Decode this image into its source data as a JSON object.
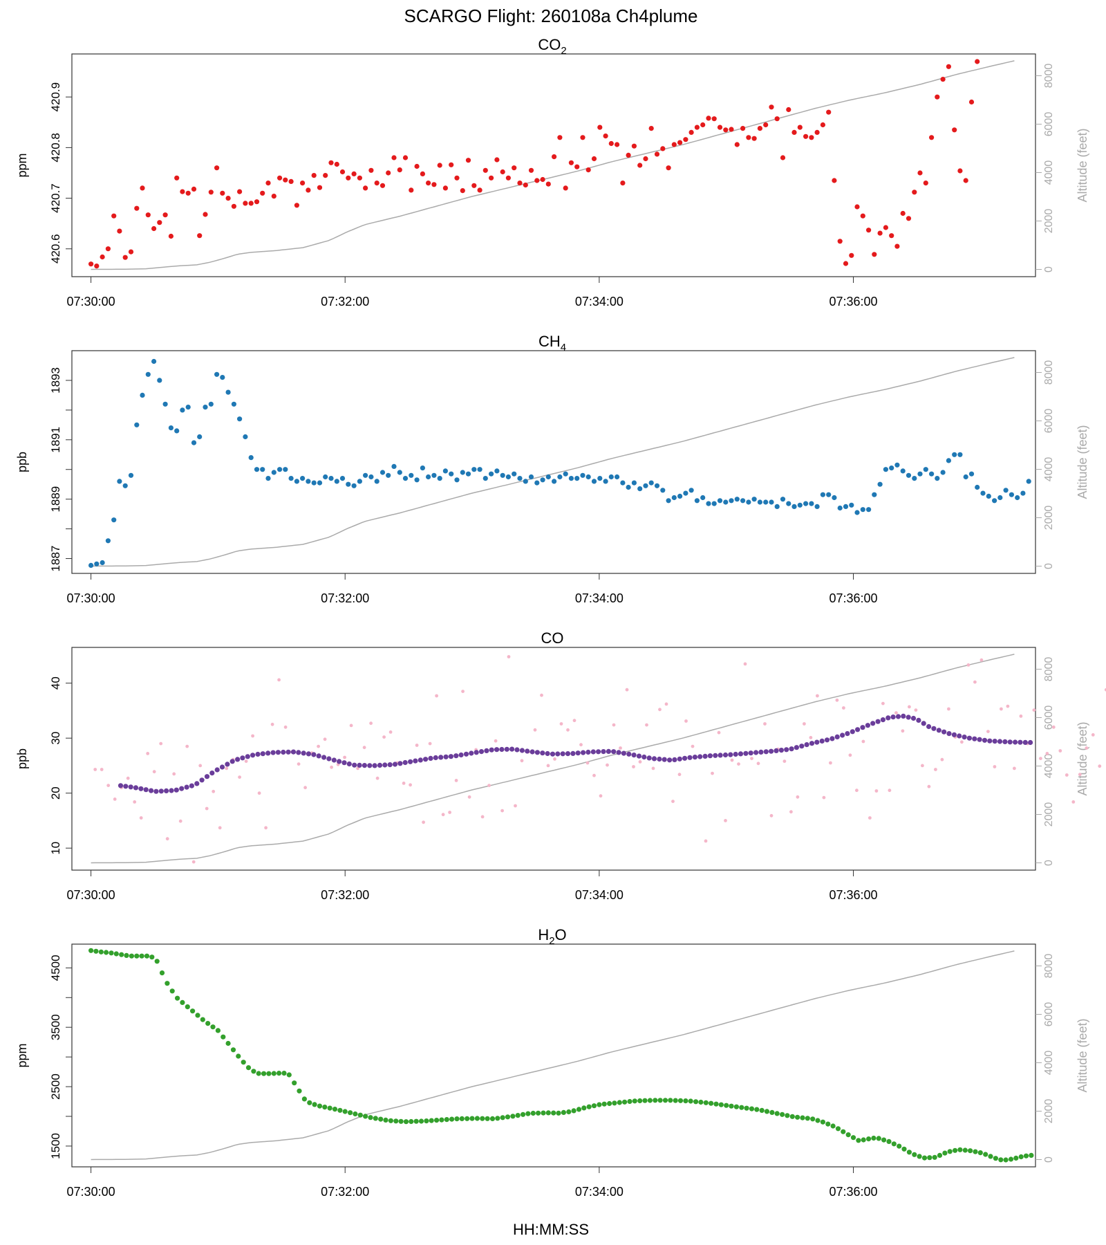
{
  "title": "SCARGO Flight: 260108a  Ch4plume",
  "xlabel": "HH:MM:SS",
  "alt_axis_label": "Altitude (feet)",
  "x_ticks": [
    "07:30:00",
    "07:32:00",
    "07:34:00",
    "07:36:00"
  ],
  "colors": {
    "co2": "#e41a1c",
    "ch4": "#1f78b4",
    "co_raw": "#f4b6c9",
    "co_smooth": "#6a3d9a",
    "h2o": "#33a02c",
    "altitude": "#aaaaaa"
  },
  "chart_data": [
    {
      "type": "scatter",
      "id": "co2",
      "title": "CO",
      "title_sub": "2",
      "ylabel": "ppm",
      "xlim": [
        -5,
        450
      ],
      "ylim": [
        420.545,
        420.985
      ],
      "y_ticks": [
        420.6,
        420.7,
        420.8,
        420.9
      ],
      "y_tick_labels": [
        "420.6",
        "420.7",
        "420.8",
        "420.9"
      ],
      "x_start_seconds": 4,
      "x_step_seconds": 2.7,
      "values": [
        420.57,
        420.566,
        420.584,
        420.6,
        420.665,
        420.635,
        420.583,
        420.594,
        420.68,
        420.72,
        420.667,
        420.64,
        420.652,
        420.667,
        420.625,
        420.74,
        420.713,
        420.71,
        420.718,
        420.626,
        420.668,
        420.712,
        420.76,
        420.71,
        420.7,
        420.684,
        420.713,
        420.69,
        420.69,
        420.693,
        420.71,
        420.73,
        420.704,
        420.74,
        420.736,
        420.733,
        420.686,
        420.73,
        420.716,
        420.745,
        420.721,
        420.745,
        420.77,
        420.767,
        420.752,
        420.74,
        420.748,
        420.74,
        420.72,
        420.755,
        420.73,
        420.725,
        420.75,
        420.78,
        420.756,
        420.78,
        420.716,
        420.763,
        420.748,
        420.73,
        420.727,
        420.765,
        420.72,
        420.766,
        420.74,
        420.715,
        420.775,
        420.725,
        420.716,
        420.755,
        420.74,
        420.776,
        420.752,
        420.74,
        420.76,
        420.73,
        420.726,
        420.755,
        420.735,
        420.737,
        420.728,
        420.782,
        420.82,
        420.72,
        420.77,
        420.762,
        420.82,
        420.756,
        420.778,
        420.84,
        420.823,
        420.808,
        420.806,
        420.73,
        420.785,
        420.803,
        420.765,
        420.778,
        420.838,
        420.787,
        420.798,
        420.76,
        420.806,
        420.81,
        420.816,
        420.83,
        420.84,
        420.845,
        420.858,
        420.857,
        420.84,
        420.835,
        420.836,
        420.806,
        420.838,
        420.82,
        420.818,
        420.838,
        420.845,
        420.88,
        420.857,
        420.78,
        420.875,
        420.83,
        420.84,
        420.822,
        420.82,
        420.83,
        420.845,
        420.87,
        420.735,
        420.615,
        420.571,
        420.587,
        420.683,
        420.665,
        420.637,
        420.589,
        420.631,
        420.642,
        420.626,
        420.605,
        420.67,
        420.66,
        420.712,
        420.75,
        420.73,
        420.82,
        420.9,
        420.935,
        420.96,
        420.835,
        420.754,
        420.735,
        420.89,
        420.97
      ]
    },
    {
      "type": "scatter",
      "id": "ch4",
      "title": "CH",
      "title_sub": "4",
      "ylabel": "ppb",
      "xlim": [
        -5,
        450
      ],
      "ylim": [
        1886.5,
        1894.0
      ],
      "y_ticks": [
        1887,
        1888,
        1889,
        1890,
        1891,
        1892,
        1893
      ],
      "y_tick_labels": [
        "1887",
        "",
        "1889",
        "",
        "1891",
        "",
        "1893"
      ],
      "x_start_seconds": 4,
      "x_step_seconds": 2.7,
      "values": [
        1886.77,
        1886.82,
        1886.86,
        1887.6,
        1888.3,
        1889.6,
        1889.45,
        1889.8,
        1891.5,
        1892.5,
        1893.2,
        1893.64,
        1893,
        1892.2,
        1891.4,
        1891.3,
        1892,
        1892.1,
        1890.9,
        1891.1,
        1892.1,
        1892.2,
        1893.2,
        1893.1,
        1892.6,
        1892.2,
        1891.7,
        1891.1,
        1890.4,
        1890,
        1890,
        1889.7,
        1889.9,
        1890,
        1890,
        1889.7,
        1889.6,
        1889.7,
        1889.6,
        1889.55,
        1889.55,
        1889.75,
        1889.7,
        1889.6,
        1889.7,
        1889.5,
        1889.45,
        1889.6,
        1889.8,
        1889.75,
        1889.6,
        1889.9,
        1889.8,
        1890.1,
        1889.9,
        1889.7,
        1889.8,
        1889.65,
        1890.05,
        1889.75,
        1889.8,
        1889.7,
        1889.95,
        1889.85,
        1889.65,
        1889.9,
        1889.85,
        1890,
        1890,
        1889.7,
        1889.85,
        1889.95,
        1889.8,
        1889.75,
        1889.85,
        1889.7,
        1889.6,
        1889.75,
        1889.55,
        1889.65,
        1889.75,
        1889.6,
        1889.75,
        1889.85,
        1889.7,
        1889.7,
        1889.8,
        1889.75,
        1889.6,
        1889.7,
        1889.6,
        1889.75,
        1889.75,
        1889.55,
        1889.4,
        1889.55,
        1889.35,
        1889.45,
        1889.55,
        1889.45,
        1889.3,
        1888.95,
        1889.05,
        1889.1,
        1889.2,
        1889.3,
        1888.95,
        1889.05,
        1888.85,
        1888.85,
        1888.95,
        1888.9,
        1888.95,
        1889,
        1888.95,
        1888.9,
        1889,
        1888.9,
        1888.9,
        1888.9,
        1888.75,
        1889,
        1888.85,
        1888.75,
        1888.8,
        1888.85,
        1888.85,
        1888.75,
        1889.15,
        1889.15,
        1889.05,
        1888.7,
        1888.75,
        1888.8,
        1888.55,
        1888.65,
        1888.65,
        1889.15,
        1889.5,
        1890,
        1890.05,
        1890.15,
        1889.95,
        1889.8,
        1889.7,
        1889.85,
        1890,
        1889.85,
        1889.7,
        1889.9,
        1890.3,
        1890.5,
        1890.5,
        1889.75,
        1889.85,
        1889.4,
        1889.2,
        1889.1,
        1888.95,
        1889.05,
        1889.3,
        1889.15,
        1889.05,
        1889.2,
        1889.6
      ]
    },
    {
      "type": "scatter",
      "id": "co",
      "title": "CO",
      "title_sub": "",
      "ylabel": "ppb",
      "xlim": [
        -5,
        450
      ],
      "ylim": [
        6,
        46.5
      ],
      "y_ticks": [
        10,
        20,
        30,
        40
      ],
      "y_tick_labels": [
        "10",
        "20",
        "30",
        "40"
      ],
      "raw_x_start_seconds": 6,
      "raw_x_step_seconds": 3.1,
      "raw_values": [
        24.3,
        24.3,
        21.4,
        18.9,
        21,
        22.7,
        18.4,
        15.5,
        27.2,
        23.9,
        29,
        11.7,
        23.5,
        14.9,
        28.5,
        7.5,
        25,
        17.2,
        20.3,
        13.7,
        24.5,
        26.1,
        22.9,
        25.8,
        30.4,
        20,
        13.7,
        32.5,
        40.6,
        32,
        27.5,
        25.3,
        21,
        27.3,
        28.5,
        29.8,
        24.7,
        25.2,
        26.5,
        32.3,
        24.5,
        28.3,
        32.7,
        22.7,
        30.2,
        31.1,
        25.5,
        21.8,
        21.5,
        28.7,
        14.7,
        29,
        37.7,
        16.1,
        16.5,
        22.3,
        38.5,
        19.3,
        27.9,
        15.7,
        21.4,
        29.5,
        16.8,
        44.8,
        17.7,
        25.9,
        27.5,
        31.5,
        37.8,
        25,
        26.2,
        32.6,
        31.5,
        33.2,
        28.8,
        25.5,
        23.2,
        19.5,
        25.1,
        32.4,
        28.2,
        38.8,
        24.8,
        25.7,
        32.4,
        24.5,
        35.2,
        36.2,
        18.5,
        23.4,
        33.1,
        28.5,
        26.6,
        11.3,
        23.6,
        31,
        15,
        26,
        25.3,
        43.5,
        26.3,
        25.4,
        32.6,
        15.9,
        28,
        25.8,
        16.6,
        19.3,
        32.6,
        30.1,
        37.7,
        19.2,
        25.5,
        36.9,
        35.5,
        26.9,
        20.5,
        29.4,
        15.5,
        20.4,
        36.3,
        20.5,
        34.6,
        31.3,
        35.7,
        35.1,
        25,
        21.2,
        24.3,
        26.1,
        35.3,
        30.2,
        29.3,
        43.3,
        40.2,
        44.2,
        31.2,
        24.8,
        35.3,
        35.8,
        24.5,
        34,
        29,
        35.1,
        26.3,
        27.2,
        32,
        27.7,
        23.3,
        18.4,
        23.4,
        28.2,
        30.6,
        24.9,
        38.8,
        31.3,
        32.8
      ]
    },
    {
      "type": "scatter",
      "id": "h2o",
      "title": "H",
      "title_sub": "2",
      "title_suffix": "O",
      "ylabel": "ppm",
      "xlim": [
        -5,
        450
      ],
      "ylim": [
        1150,
        4900
      ],
      "y_ticks": [
        1500,
        2000,
        2500,
        3000,
        3500,
        4000,
        4500
      ],
      "y_tick_labels": [
        "1500",
        "",
        "2500",
        "",
        "3500",
        "",
        "4500"
      ]
    }
  ]
}
